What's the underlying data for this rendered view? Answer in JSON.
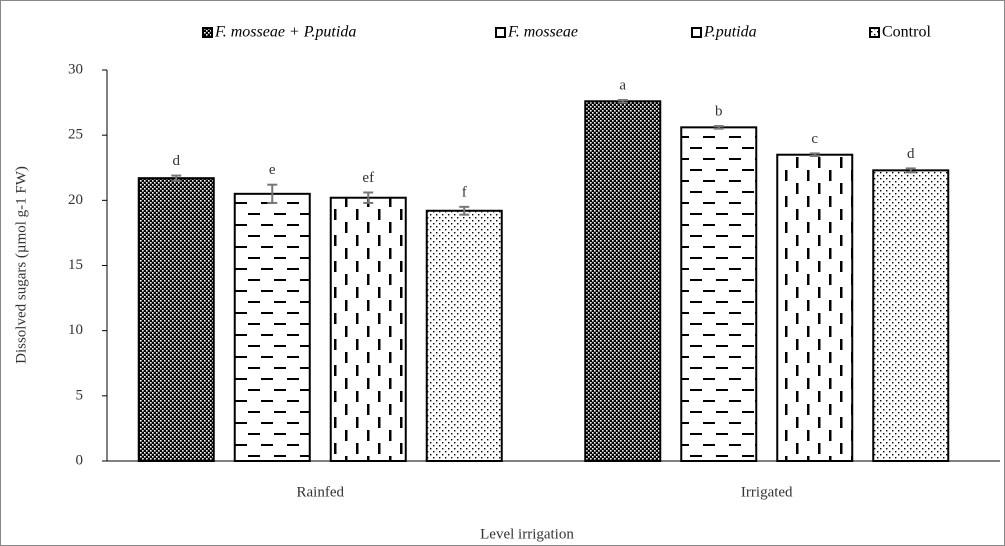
{
  "chart_data": {
    "type": "bar",
    "x_label": "Level irrigation",
    "y_label": "Dissolved sugars (µmol g-1 FW)",
    "categories": [
      "Rainfed",
      "Irrigated"
    ],
    "ylim": [
      0,
      30
    ],
    "yticks": [
      0,
      5,
      10,
      15,
      20,
      25,
      30
    ],
    "series": [
      {
        "name": "F. mosseae + P.putida",
        "italic": true,
        "color": "#000000",
        "pattern": "checker",
        "values": [
          21.7,
          27.6
        ],
        "errors": [
          0.2,
          0.1
        ],
        "labels": [
          "d",
          "a"
        ]
      },
      {
        "name": "F. mosseae",
        "italic": true,
        "color": "#000000",
        "pattern": "hdash",
        "values": [
          20.5,
          25.6
        ],
        "errors": [
          0.7,
          0.1
        ],
        "labels": [
          "e",
          "b"
        ]
      },
      {
        "name": "P.putida",
        "italic": true,
        "color": "#000000",
        "pattern": "vdash",
        "values": [
          20.2,
          23.5
        ],
        "errors": [
          0.4,
          0.1
        ],
        "labels": [
          "ef",
          "c"
        ]
      },
      {
        "name": "Control",
        "italic": false,
        "color": "#000000",
        "pattern": "dots",
        "values": [
          19.2,
          22.3
        ],
        "errors": [
          0.3,
          0.15
        ],
        "labels": [
          "f",
          "d"
        ]
      }
    ]
  }
}
